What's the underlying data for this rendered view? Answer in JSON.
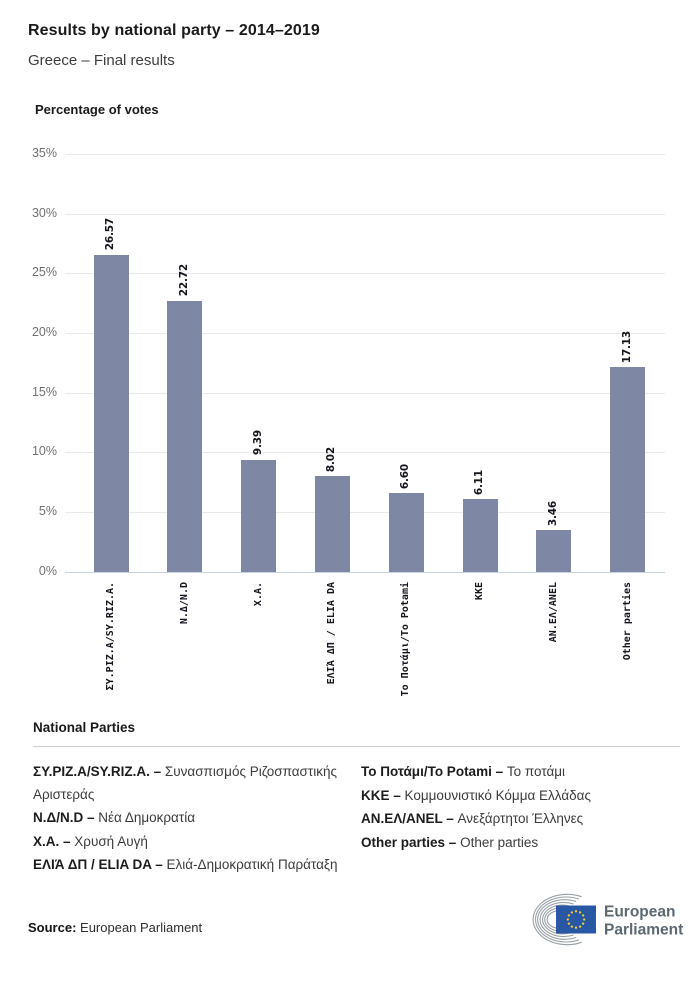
{
  "header": {
    "title": "Results by national party – 2014–2019",
    "subtitle": "Greece – Final results"
  },
  "chart_data": {
    "type": "bar",
    "title": "Percentage of votes",
    "xlabel": "",
    "ylabel": "Percentage of votes",
    "categories": [
      "ΣΥ.ΡΙΖ.Α/SY.RIZ.A.",
      "Ν.Δ/N.D",
      "Χ.Α.",
      "ΕΛΙΆ ΔΠ / ELIA DA",
      "Το Ποτάμι/To Potami",
      "ΚΚΕ",
      "ΑΝ.ΕΛ/ANEL",
      "Other parties"
    ],
    "values": [
      26.57,
      22.72,
      9.39,
      8.02,
      6.6,
      6.11,
      3.46,
      17.13
    ],
    "value_labels": [
      "26.57",
      "22.72",
      "9.39",
      "8.02",
      "6.60",
      "6.11",
      "3.46",
      "17.13"
    ],
    "y_ticks": [
      "0%",
      "5%",
      "10%",
      "15%",
      "20%",
      "25%",
      "30%",
      "35%"
    ],
    "ylim": [
      0,
      35
    ],
    "grid": true,
    "legend_position": "none",
    "bar_color": "#7e88a5",
    "gridline_color": "#e9e9e9",
    "baseline_color": "#c9d3df"
  },
  "legend": {
    "heading": "National Parties",
    "columns": [
      {
        "items": [
          {
            "name": "ΣΥ.ΡΙΖ.Α/SY.RIZ.A. –",
            "desc": "Συνασπισμός Ριζοσπαστικής Αριστεράς"
          },
          {
            "name": "Ν.Δ/N.D –",
            "desc": "Νέα Δημοκρατία"
          },
          {
            "name": "Χ.Α. –",
            "desc": "Χρυσή Αυγή"
          },
          {
            "name": "ΕΛΙΆ ΔΠ / ELIA DA –",
            "desc": "Ελιά-Δημοκρατική Παράταξη"
          }
        ]
      },
      {
        "items": [
          {
            "name": "Το Ποτάμι/To Potami –",
            "desc": "Το ποτάμι"
          },
          {
            "name": "ΚΚΕ –",
            "desc": "Κομμουνιστικό Κόμμα Ελλάδας"
          },
          {
            "name": "ΑΝ.ΕΛ/ANEL –",
            "desc": "Ανεξάρτητοι Έλληνες"
          },
          {
            "name": "Other parties –",
            "desc": "Other parties"
          }
        ]
      }
    ]
  },
  "footer": {
    "source_label": "Source:",
    "source_text": " European Parliament",
    "logo_line1": "European",
    "logo_line2": "Parliament",
    "logo_colors": {
      "flag_blue": "#2857a4",
      "star_yellow": "#ffcc2e",
      "arc_gray": "#939ba1",
      "text_gray": "#5d6970"
    }
  }
}
